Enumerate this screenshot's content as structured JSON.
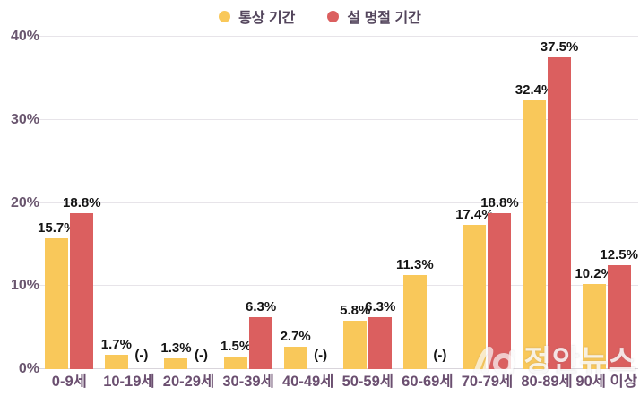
{
  "chart_data": {
    "type": "bar",
    "title": "",
    "categories": [
      "0-9세",
      "10-19세",
      "20-29세",
      "30-39세",
      "40-49세",
      "50-59세",
      "60-69세",
      "70-79세",
      "80-89세",
      "90세 이상"
    ],
    "series": [
      {
        "name": "통상 기간",
        "color": "#F9C85A",
        "values": [
          15.7,
          1.7,
          1.3,
          1.5,
          2.7,
          5.8,
          11.3,
          17.4,
          32.4,
          10.2
        ],
        "labels": [
          "15.7%",
          "1.7%",
          "1.3%",
          "1.5%",
          "2.7%",
          "5.8%",
          "11.3%",
          "17.4%",
          "32.4%",
          "10.2%"
        ]
      },
      {
        "name": "설 명절 기간",
        "color": "#DB5F5F",
        "values": [
          18.8,
          null,
          null,
          6.3,
          null,
          6.3,
          null,
          18.8,
          37.5,
          12.5
        ],
        "labels": [
          "18.8%",
          "(-)",
          "(-)",
          "6.3%",
          "(-)",
          "6.3%",
          "(-)",
          "18.8%",
          "37.5%",
          "12.5%"
        ]
      }
    ],
    "xlabel": "",
    "ylabel": "",
    "ylim": [
      0,
      40
    ],
    "yticks": [
      {
        "value": 0,
        "label": "0%"
      },
      {
        "value": 10,
        "label": "10%"
      },
      {
        "value": 20,
        "label": "20%"
      },
      {
        "value": 30,
        "label": "30%"
      },
      {
        "value": 40,
        "label": "40%"
      }
    ],
    "grid": true,
    "legend_position": "top"
  },
  "watermark": {
    "text": "정안뉴스"
  },
  "colors": {
    "background": "#FFFFFF",
    "axis_text": "#6A566F",
    "category_text": "#6B4F70",
    "legend_text": "#53455C",
    "data_label": "#141414",
    "gridline": "#E7E4E9",
    "baseline": "#D9D5DB",
    "watermark": "rgba(255,255,255,0.82)"
  }
}
